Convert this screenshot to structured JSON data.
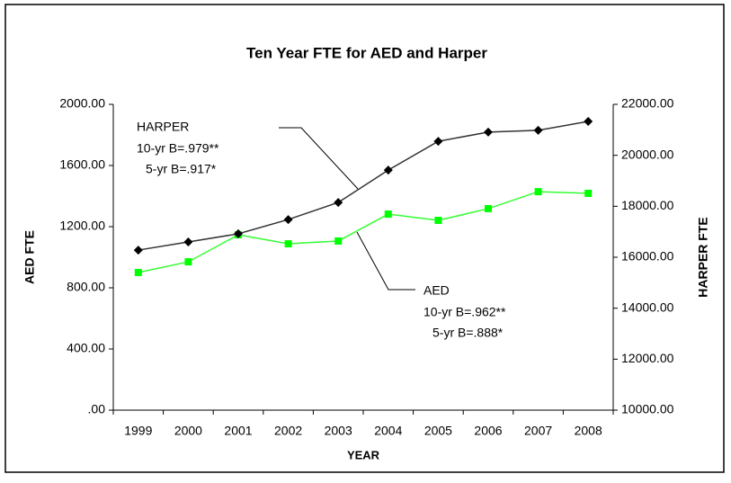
{
  "chart_data": {
    "type": "line",
    "title": "Ten Year FTE for AED and Harper",
    "x_label": "YEAR",
    "y_label": "AED FTE",
    "y2_label": "HARPER FTE",
    "categories": [
      "1999",
      "2000",
      "2001",
      "2002",
      "2003",
      "2004",
      "2005",
      "2006",
      "2007",
      "2008"
    ],
    "series": [
      {
        "name": "AED",
        "color": "#00ff00",
        "values": [
          900,
          970,
          1147,
          1088,
          1106,
          1282,
          1241,
          1318,
          1429,
          1418
        ]
      },
      {
        "name": "HARPER",
        "color": "#000000",
        "axis": "y2",
        "values": [
          16280,
          16600,
          16920,
          17480,
          18150,
          19420,
          20550,
          20910,
          20980,
          21330
        ]
      }
    ],
    "ylim": [
      0,
      2000
    ],
    "yticks": [
      {
        "value": 0,
        "label": ".00"
      },
      {
        "value": 400,
        "label": "400.00"
      },
      {
        "value": 800,
        "label": "800.00"
      },
      {
        "value": 1200,
        "label": "1200.00"
      },
      {
        "value": 1600,
        "label": "1600.00"
      },
      {
        "value": 2000,
        "label": "2000.00"
      }
    ],
    "y2lim": [
      10000,
      22000
    ],
    "y2ticks": [
      {
        "value": 10000,
        "label": "10000.00"
      },
      {
        "value": 12000,
        "label": "12000.00"
      },
      {
        "value": 14000,
        "label": "14000.00"
      },
      {
        "value": 16000,
        "label": "16000.00"
      },
      {
        "value": 18000,
        "label": "18000.00"
      },
      {
        "value": 20000,
        "label": "20000.00"
      },
      {
        "value": 22000,
        "label": "22000.00"
      }
    ],
    "annotations": [
      {
        "lines": [
          "HARPER",
          "10-yr B=.979**",
          "5-yr B=.917*"
        ]
      },
      {
        "lines": [
          "AED",
          "10-yr B=.962**",
          "5-yr B=.888*"
        ]
      }
    ]
  }
}
